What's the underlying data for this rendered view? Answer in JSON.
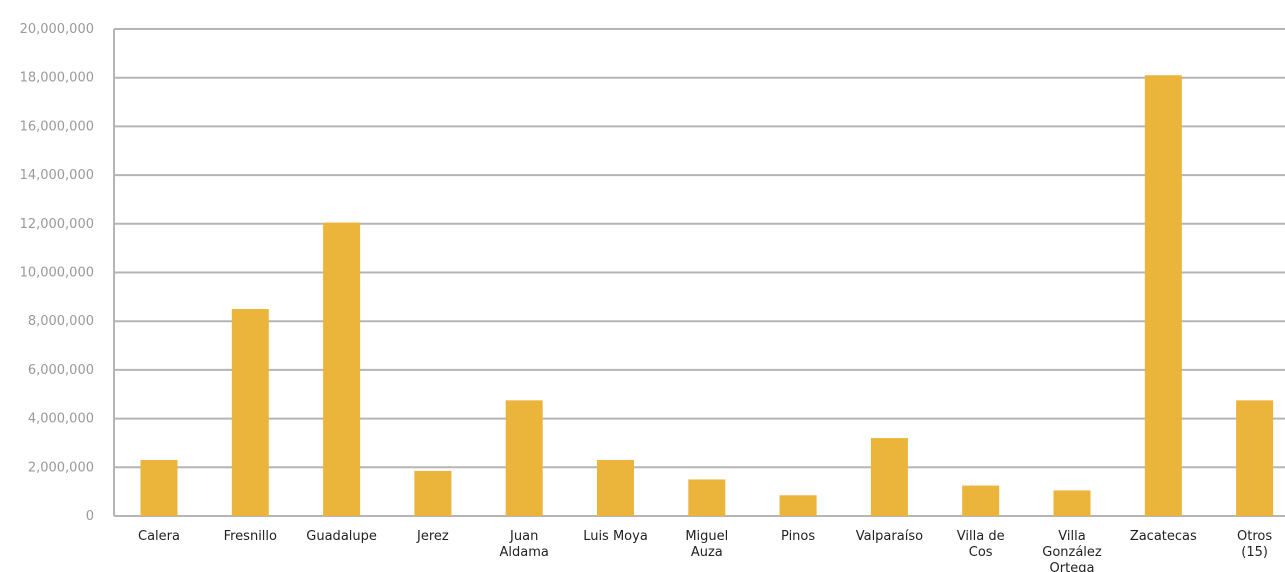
{
  "chart_data": {
    "type": "bar",
    "categories": [
      [
        "Calera"
      ],
      [
        "Fresnillo"
      ],
      [
        "Guadalupe"
      ],
      [
        "Jerez"
      ],
      [
        "Juan",
        "Aldama"
      ],
      [
        "Luis Moya"
      ],
      [
        "Miguel",
        "Auza"
      ],
      [
        "Pinos"
      ],
      [
        "Valparaíso"
      ],
      [
        "Villa de",
        "Cos"
      ],
      [
        "Villa",
        "González",
        "Ortega"
      ],
      [
        "Zacatecas"
      ],
      [
        "Otros",
        "(15)"
      ]
    ],
    "values": [
      2300000,
      8500000,
      12050000,
      1850000,
      4750000,
      2300000,
      1500000,
      850000,
      3200000,
      1250000,
      1050000,
      18100000,
      4750000
    ],
    "ylim": [
      0,
      20000000
    ],
    "yticks": [
      {
        "value": 0,
        "label": "0"
      },
      {
        "value": 2000000,
        "label": "2,000,000"
      },
      {
        "value": 4000000,
        "label": "4,000,000"
      },
      {
        "value": 6000000,
        "label": "6,000,000"
      },
      {
        "value": 8000000,
        "label": "8,000,000"
      },
      {
        "value": 10000000,
        "label": "10,000,000"
      },
      {
        "value": 12000000,
        "label": "12,000,000"
      },
      {
        "value": 14000000,
        "label": "14,000,000"
      },
      {
        "value": 16000000,
        "label": "16,000,000"
      },
      {
        "value": 18000000,
        "label": "18,000,000"
      },
      {
        "value": 20000000,
        "label": "20,000,000"
      }
    ],
    "title": "",
    "xlabel": "",
    "ylabel": "",
    "grid": true,
    "colors": {
      "bar": "#EBB43A",
      "grid": "#b5b5b5"
    }
  }
}
